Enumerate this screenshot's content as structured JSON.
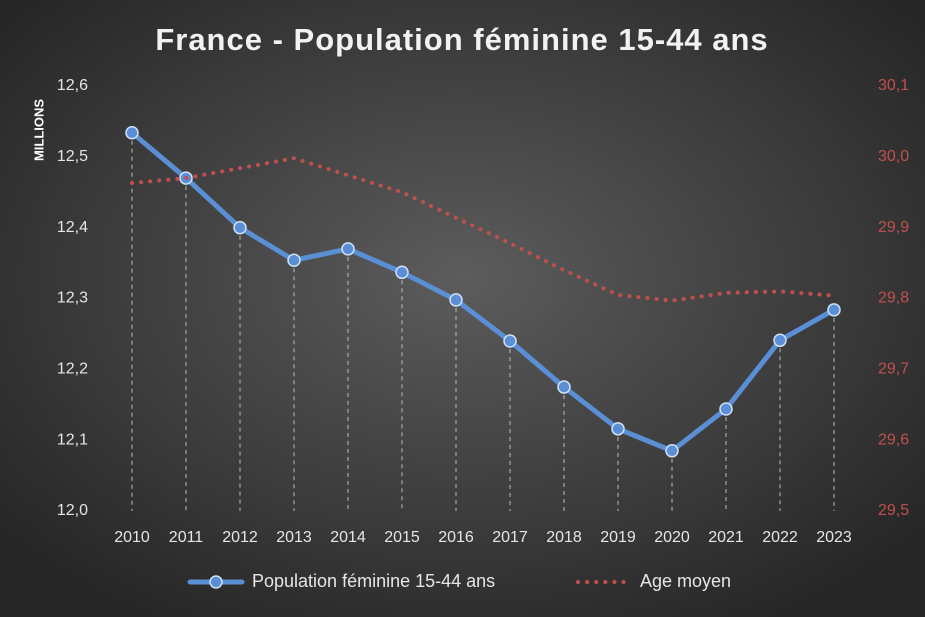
{
  "chart_data": {
    "type": "line",
    "title": "France - Population féminine 15-44 ans",
    "y_label": "MILLIONS",
    "categories": [
      "2010",
      "2011",
      "2012",
      "2013",
      "2014",
      "2015",
      "2016",
      "2017",
      "2018",
      "2019",
      "2020",
      "2021",
      "2022",
      "2023"
    ],
    "series": [
      {
        "name": "Population féminine 15-44 ans",
        "color": "#5a8fd6",
        "values": [
          12.534,
          12.47,
          12.4,
          12.354,
          12.37,
          12.337,
          12.298,
          12.24,
          12.175,
          12.116,
          12.085,
          12.144,
          12.241,
          12.284
        ]
      },
      {
        "name": "Age moyen",
        "color": "#c0504d",
        "axis": "y2",
        "values": [
          29.963,
          29.97,
          29.984,
          29.998,
          29.974,
          29.95,
          29.914,
          29.878,
          29.84,
          29.805,
          29.797,
          29.808,
          29.81,
          29.804
        ]
      }
    ],
    "ylim": [
      12.0,
      12.6
    ],
    "yticks": [
      {
        "value": 12.0,
        "label": "12,0"
      },
      {
        "value": 12.1,
        "label": "12,1"
      },
      {
        "value": 12.2,
        "label": "12,2"
      },
      {
        "value": 12.3,
        "label": "12,3"
      },
      {
        "value": 12.4,
        "label": "12,4"
      },
      {
        "value": 12.5,
        "label": "12,5"
      },
      {
        "value": 12.6,
        "label": "12,6"
      }
    ],
    "y2lim": [
      29.5,
      30.1
    ],
    "y2ticks": [
      {
        "value": 29.5,
        "label": "29,5"
      },
      {
        "value": 29.6,
        "label": "29,6"
      },
      {
        "value": 29.7,
        "label": "29,7"
      },
      {
        "value": 29.8,
        "label": "29,8"
      },
      {
        "value": 29.9,
        "label": "29,9"
      },
      {
        "value": 30.0,
        "label": "30,0"
      },
      {
        "value": 30.1,
        "label": "30,1"
      }
    ],
    "drop_lines": true,
    "legend": "bottom"
  }
}
